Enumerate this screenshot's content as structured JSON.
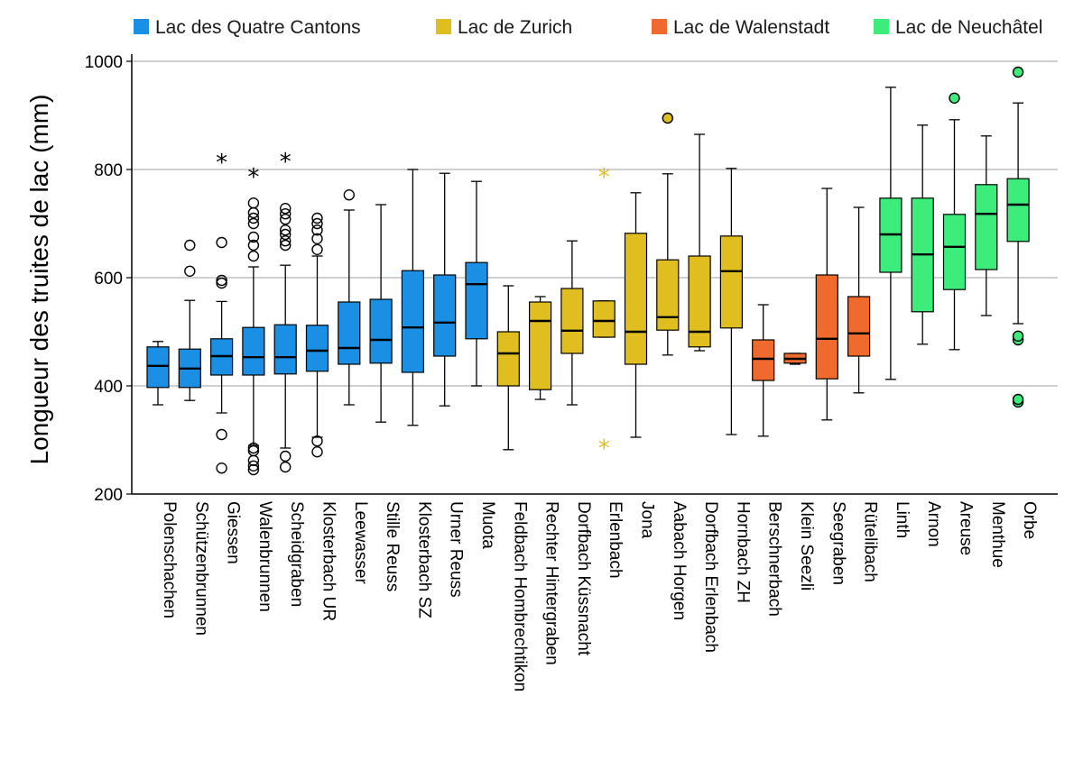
{
  "chart_data": {
    "type": "boxplot",
    "ylabel": "Longueur des truites de lac (mm)",
    "xlabel": "",
    "ylim": [
      200,
      1000
    ],
    "yticks": [
      200,
      400,
      600,
      800,
      1000
    ],
    "grid": "horizontal",
    "legend_position": "top",
    "groups": [
      {
        "name": "Lac des Quatre Cantons",
        "color": "#1a8fe3"
      },
      {
        "name": "Lac de Zurich",
        "color": "#e0be1f"
      },
      {
        "name": "Lac de Walenstadt",
        "color": "#f06a2e"
      },
      {
        "name": "Lac de Neuchâtel",
        "color": "#3ded7c"
      }
    ],
    "categories": [
      {
        "name": "Polenschachen",
        "group": 0,
        "min": 365,
        "q1": 397,
        "median": 437,
        "q3": 472,
        "max": 482,
        "outliers": [],
        "extremes": []
      },
      {
        "name": "Schützenbrunnen",
        "group": 0,
        "min": 373,
        "q1": 397,
        "median": 432,
        "q3": 468,
        "max": 558,
        "outliers": [
          612,
          660
        ],
        "extremes": []
      },
      {
        "name": "Giessen",
        "group": 0,
        "min": 350,
        "q1": 420,
        "median": 455,
        "q3": 487,
        "max": 556,
        "outliers": [
          248,
          310,
          590,
          595,
          665
        ],
        "extremes": [
          818
        ]
      },
      {
        "name": "Walenbrunnen",
        "group": 0,
        "min": 290,
        "q1": 420,
        "median": 453,
        "q3": 508,
        "max": 620,
        "outliers": [
          245,
          252,
          262,
          280,
          285,
          640,
          660,
          675,
          700,
          710,
          720,
          738
        ],
        "extremes": [
          792
        ]
      },
      {
        "name": "Scheidgraben",
        "group": 0,
        "min": 285,
        "q1": 422,
        "median": 453,
        "q3": 513,
        "max": 623,
        "outliers": [
          250,
          270,
          660,
          668,
          680,
          688,
          708,
          718,
          728
        ],
        "extremes": [
          820
        ]
      },
      {
        "name": "Klosterbach UR",
        "group": 0,
        "min": 305,
        "q1": 427,
        "median": 465,
        "q3": 512,
        "max": 640,
        "outliers": [
          278,
          298,
          652,
          672,
          688,
          700,
          710
        ],
        "extremes": []
      },
      {
        "name": "Leewasser",
        "group": 0,
        "min": 365,
        "q1": 440,
        "median": 470,
        "q3": 555,
        "max": 725,
        "outliers": [
          753
        ],
        "extremes": []
      },
      {
        "name": "Stille Reuss",
        "group": 0,
        "min": 333,
        "q1": 442,
        "median": 485,
        "q3": 560,
        "max": 735,
        "outliers": [],
        "extremes": []
      },
      {
        "name": "Klosterbach SZ",
        "group": 0,
        "min": 327,
        "q1": 425,
        "median": 508,
        "q3": 613,
        "max": 800,
        "outliers": [],
        "extremes": []
      },
      {
        "name": "Urner Reuss",
        "group": 0,
        "min": 363,
        "q1": 455,
        "median": 517,
        "q3": 605,
        "max": 793,
        "outliers": [],
        "extremes": []
      },
      {
        "name": "Muota",
        "group": 0,
        "min": 400,
        "q1": 487,
        "median": 588,
        "q3": 628,
        "max": 778,
        "outliers": [],
        "extremes": []
      },
      {
        "name": "Feldbach Hombrechtikon",
        "group": 1,
        "min": 282,
        "q1": 400,
        "median": 460,
        "q3": 500,
        "max": 585,
        "outliers": [],
        "extremes": []
      },
      {
        "name": "Rechter Hintergraben",
        "group": 1,
        "min": 375,
        "q1": 393,
        "median": 520,
        "q3": 555,
        "max": 565,
        "outliers": [],
        "extremes": []
      },
      {
        "name": "Dorfbach Küssnacht",
        "group": 1,
        "min": 365,
        "q1": 460,
        "median": 502,
        "q3": 580,
        "max": 668,
        "outliers": [],
        "extremes": []
      },
      {
        "name": "Erlenbach",
        "group": 1,
        "min": 490,
        "q1": 490,
        "median": 520,
        "q3": 557,
        "max": 557,
        "outliers": [],
        "extremes": [
          290,
          792
        ]
      },
      {
        "name": "Jona",
        "group": 1,
        "min": 305,
        "q1": 440,
        "median": 500,
        "q3": 682,
        "max": 757,
        "outliers": [],
        "extremes": []
      },
      {
        "name": "Aabach Horgen",
        "group": 1,
        "min": 457,
        "q1": 503,
        "median": 527,
        "q3": 633,
        "max": 792,
        "outliers": [
          895
        ],
        "extremes": []
      },
      {
        "name": "Dorfbach Erlenbach",
        "group": 1,
        "min": 465,
        "q1": 472,
        "median": 500,
        "q3": 640,
        "max": 865,
        "outliers": [],
        "extremes": []
      },
      {
        "name": "Hornbach ZH",
        "group": 1,
        "min": 310,
        "q1": 507,
        "median": 612,
        "q3": 677,
        "max": 802,
        "outliers": [],
        "extremes": []
      },
      {
        "name": "Berschnerbach",
        "group": 2,
        "min": 307,
        "q1": 410,
        "median": 450,
        "q3": 485,
        "max": 550,
        "outliers": [],
        "extremes": []
      },
      {
        "name": "Klein Seezli",
        "group": 2,
        "min": 440,
        "q1": 442,
        "median": 450,
        "q3": 460,
        "max": 460,
        "outliers": [],
        "extremes": []
      },
      {
        "name": "Seegraben",
        "group": 2,
        "min": 337,
        "q1": 413,
        "median": 487,
        "q3": 605,
        "max": 765,
        "outliers": [],
        "extremes": []
      },
      {
        "name": "Rütelibach",
        "group": 2,
        "min": 387,
        "q1": 455,
        "median": 497,
        "q3": 565,
        "max": 730,
        "outliers": [],
        "extremes": []
      },
      {
        "name": "Linth",
        "group": 3,
        "min": 412,
        "q1": 610,
        "median": 680,
        "q3": 747,
        "max": 952,
        "outliers": [],
        "extremes": []
      },
      {
        "name": "Arnon",
        "group": 3,
        "min": 477,
        "q1": 537,
        "median": 643,
        "q3": 747,
        "max": 882,
        "outliers": [],
        "extremes": []
      },
      {
        "name": "Areuse",
        "group": 3,
        "min": 467,
        "q1": 578,
        "median": 657,
        "q3": 717,
        "max": 892,
        "outliers": [
          932
        ],
        "extremes": []
      },
      {
        "name": "Menthue",
        "group": 3,
        "min": 530,
        "q1": 615,
        "median": 718,
        "q3": 772,
        "max": 862,
        "outliers": [],
        "extremes": []
      },
      {
        "name": "Orbe",
        "group": 3,
        "min": 515,
        "q1": 667,
        "median": 735,
        "q3": 783,
        "max": 923,
        "outliers": [
          370,
          375,
          485,
          492,
          980
        ],
        "extremes": []
      }
    ]
  }
}
